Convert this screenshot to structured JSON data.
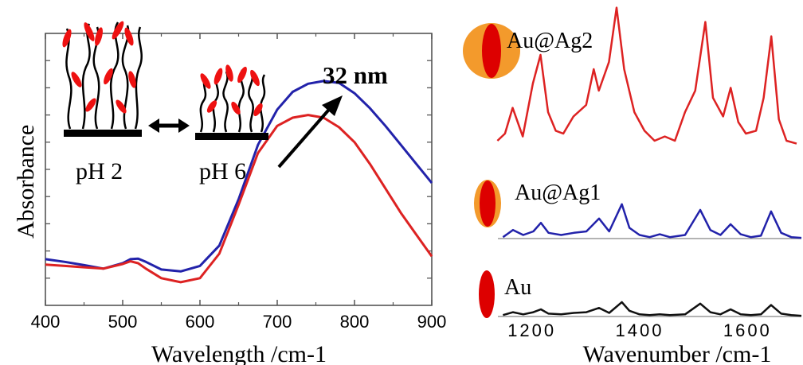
{
  "chart_data": [
    {
      "type": "line",
      "title": "",
      "xlabel": "Wavelength /cm-1",
      "ylabel": "Absorbance",
      "xlim": [
        400,
        900
      ],
      "ylim": [
        0,
        1
      ],
      "xticks": [
        "400",
        "500",
        "600",
        "700",
        "800",
        "900"
      ],
      "grid": false,
      "series": [
        {
          "color": "#2222aa",
          "x": [
            400,
            425,
            450,
            475,
            500,
            510,
            520,
            530,
            550,
            575,
            600,
            625,
            650,
            675,
            700,
            720,
            740,
            760,
            780,
            800,
            820,
            840,
            860,
            880,
            900
          ],
          "y": [
            0.17,
            0.16,
            0.148,
            0.135,
            0.155,
            0.17,
            0.172,
            0.16,
            0.132,
            0.125,
            0.145,
            0.22,
            0.39,
            0.59,
            0.72,
            0.785,
            0.815,
            0.825,
            0.818,
            0.78,
            0.725,
            0.66,
            0.59,
            0.52,
            0.45
          ]
        },
        {
          "color": "#dd2222",
          "x": [
            400,
            425,
            450,
            475,
            500,
            510,
            520,
            530,
            550,
            575,
            600,
            625,
            650,
            675,
            700,
            720,
            740,
            760,
            780,
            800,
            820,
            840,
            860,
            880,
            900
          ],
          "y": [
            0.15,
            0.145,
            0.14,
            0.135,
            0.152,
            0.162,
            0.155,
            0.135,
            0.1,
            0.085,
            0.1,
            0.19,
            0.37,
            0.56,
            0.66,
            0.69,
            0.7,
            0.69,
            0.655,
            0.6,
            0.52,
            0.43,
            0.34,
            0.26,
            0.18
          ]
        }
      ],
      "annotations": [
        "32 nm",
        "pH 2",
        "pH 6"
      ]
    },
    {
      "type": "line",
      "title": "",
      "xlabel": "Wavenumber /cm-1",
      "ylabel": "",
      "xlim": [
        1100,
        1700
      ],
      "xticks": [
        "1200",
        "1400",
        "1600"
      ],
      "grid": false,
      "series": [
        {
          "name": "Au@Ag2",
          "color": "#dd2222",
          "x": [
            1110,
            1125,
            1140,
            1160,
            1180,
            1195,
            1210,
            1225,
            1240,
            1260,
            1285,
            1300,
            1310,
            1330,
            1345,
            1360,
            1380,
            1400,
            1420,
            1440,
            1460,
            1480,
            1500,
            1520,
            1535,
            1555,
            1570,
            1585,
            1600,
            1620,
            1635,
            1650,
            1665,
            1680,
            1700
          ],
          "y": [
            0.05,
            0.1,
            0.28,
            0.08,
            0.45,
            0.65,
            0.25,
            0.12,
            0.1,
            0.22,
            0.3,
            0.55,
            0.4,
            0.6,
            0.98,
            0.55,
            0.25,
            0.12,
            0.05,
            0.08,
            0.05,
            0.25,
            0.4,
            0.88,
            0.35,
            0.22,
            0.42,
            0.18,
            0.1,
            0.12,
            0.35,
            0.78,
            0.2,
            0.05,
            0.03
          ]
        },
        {
          "name": "Au@Ag1",
          "color": "#2222aa",
          "x": [
            1110,
            1130,
            1150,
            1170,
            1185,
            1200,
            1225,
            1250,
            1275,
            1300,
            1320,
            1345,
            1360,
            1380,
            1400,
            1420,
            1440,
            1470,
            1500,
            1520,
            1540,
            1560,
            1580,
            1600,
            1620,
            1640,
            1660,
            1680,
            1700
          ],
          "y": [
            0.02,
            0.12,
            0.05,
            0.1,
            0.22,
            0.08,
            0.05,
            0.08,
            0.1,
            0.28,
            0.1,
            0.48,
            0.15,
            0.05,
            0.02,
            0.06,
            0.02,
            0.05,
            0.4,
            0.12,
            0.05,
            0.2,
            0.06,
            0.02,
            0.04,
            0.38,
            0.08,
            0.02,
            0.01
          ]
        },
        {
          "name": "Au",
          "color": "#111111",
          "x": [
            1110,
            1130,
            1150,
            1170,
            1185,
            1200,
            1225,
            1250,
            1275,
            1300,
            1320,
            1345,
            1360,
            1380,
            1400,
            1420,
            1440,
            1470,
            1500,
            1520,
            1540,
            1560,
            1580,
            1600,
            1620,
            1640,
            1660,
            1680,
            1700
          ],
          "y": [
            0.02,
            0.06,
            0.03,
            0.06,
            0.1,
            0.04,
            0.03,
            0.05,
            0.06,
            0.12,
            0.05,
            0.2,
            0.08,
            0.03,
            0.02,
            0.03,
            0.02,
            0.03,
            0.18,
            0.06,
            0.03,
            0.1,
            0.03,
            0.02,
            0.03,
            0.16,
            0.04,
            0.02,
            0.01
          ]
        }
      ]
    }
  ]
}
